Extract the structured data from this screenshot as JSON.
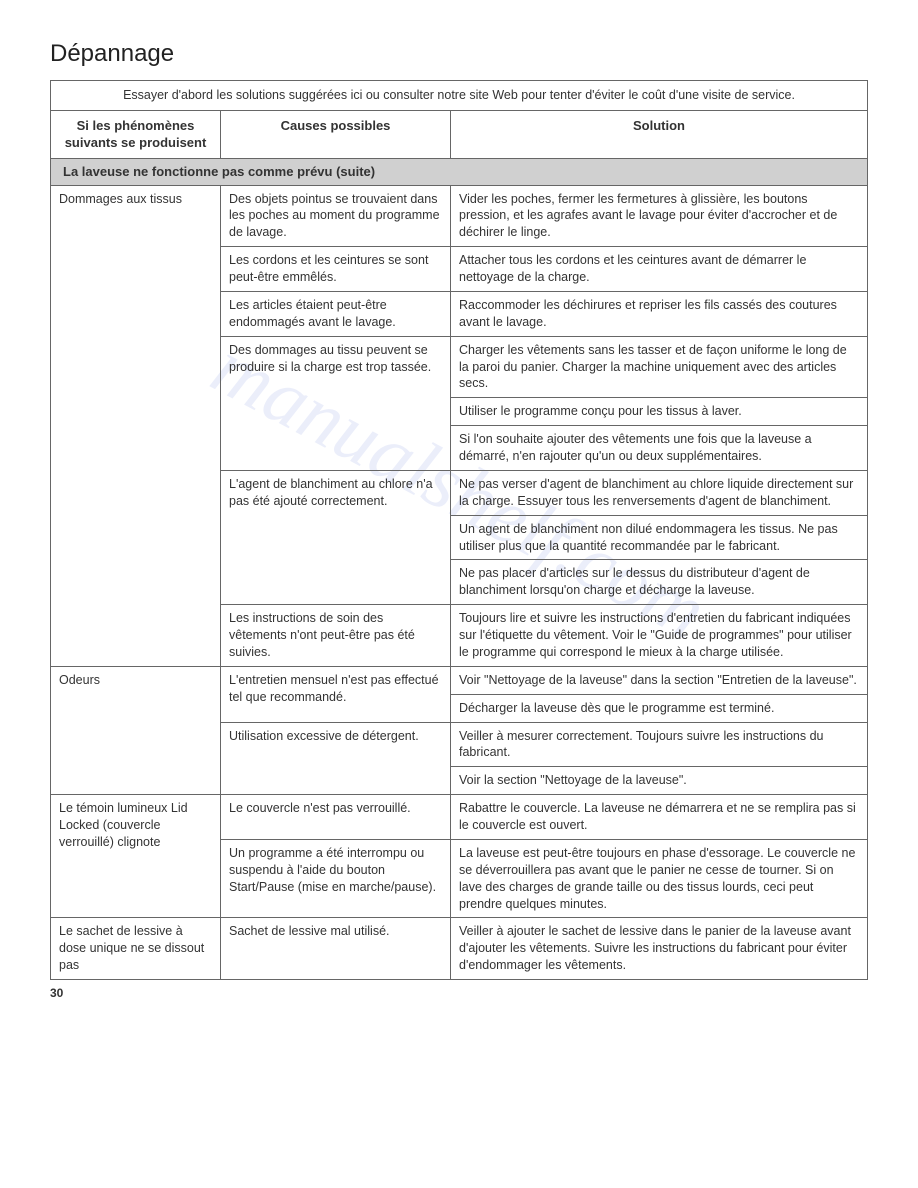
{
  "title": "Dépannage",
  "intro": "Essayer d'abord les solutions suggérées ici ou consulter notre site Web pour tenter d'éviter le coût d'une visite de service.",
  "headers": {
    "col1": "Si les phénomènes suivants se produisent",
    "col2": "Causes possibles",
    "col3": "Solution"
  },
  "section": "La laveuse ne fonctionne pas comme prévu (suite)",
  "rows": {
    "r1c1": "Dommages aux tissus",
    "r1c2": "Des objets pointus se trouvaient dans les poches au moment du programme de lavage.",
    "r1c3": "Vider les poches, fermer les fermetures à glissière, les boutons pression, et les agrafes avant le lavage pour éviter d'accrocher et de déchirer le linge.",
    "r2c2": "Les cordons et les ceintures se sont peut-être emmêlés.",
    "r2c3": "Attacher tous les cordons et les ceintures avant de démarrer le nettoyage de la charge.",
    "r3c2": "Les articles étaient peut-être endommagés avant le lavage.",
    "r3c3": "Raccommoder les déchirures et repriser les fils cassés des coutures avant le lavage.",
    "r4c2": "Des dommages au tissu peuvent se produire si la charge est trop tassée.",
    "r4c3": "Charger les vêtements sans les tasser et de façon uniforme le long de la paroi du panier. Charger la machine uniquement avec des articles secs.",
    "r5c3": "Utiliser le programme conçu pour les tissus à laver.",
    "r6c3": "Si l'on souhaite ajouter des vêtements une fois que la laveuse a démarré, n'en rajouter qu'un ou deux supplémentaires.",
    "r7c2": "L'agent de blanchiment au chlore n'a pas été ajouté correctement.",
    "r7c3": "Ne pas verser d'agent de blanchiment au chlore liquide directement sur la charge. Essuyer tous les renversements d'agent de blanchiment.",
    "r8c3": "Un agent de blanchiment non dilué endommagera les tissus. Ne pas utiliser plus que la quantité recommandée par le fabricant.",
    "r9c3": "Ne pas placer d'articles sur le dessus du distributeur d'agent de blanchiment lorsqu'on charge et décharge la laveuse.",
    "r10c2": "Les instructions de soin des vêtements n'ont peut-être pas été suivies.",
    "r10c3": "Toujours lire et suivre les instructions d'entretien du fabricant indiquées sur l'étiquette du vêtement. Voir le \"Guide de programmes\" pour utiliser le programme qui correspond le mieux à la charge utilisée.",
    "r11c1": "Odeurs",
    "r11c2": "L'entretien mensuel n'est pas effectué tel que recommandé.",
    "r11c3": "Voir \"Nettoyage de la laveuse\" dans la section \"Entretien de la laveuse\".",
    "r12c3": "Décharger la laveuse dès que le programme est terminé.",
    "r13c2": "Utilisation excessive de détergent.",
    "r13c3": "Veiller à mesurer correctement. Toujours suivre les instructions du fabricant.",
    "r14c3": "Voir la section \"Nettoyage de la laveuse\".",
    "r15c1": "Le témoin lumineux Lid Locked (couvercle verrouillé) clignote",
    "r15c2": "Le couvercle n'est pas verrouillé.",
    "r15c3": "Rabattre le couvercle. La laveuse ne démarrera et ne se remplira pas si le couvercle est ouvert.",
    "r16c2": "Un programme a été interrompu ou suspendu à l'aide du bouton Start/Pause (mise en marche/pause).",
    "r16c3": "La laveuse est peut-être toujours en phase d'essorage. Le couvercle ne se déverrouillera pas avant que le panier ne cesse de tourner. Si on lave des charges de grande taille ou des tissus lourds, ceci peut prendre quelques minutes.",
    "r17c1": "Le sachet de lessive à dose unique ne se dissout pas",
    "r17c2": "Sachet de lessive mal utilisé.",
    "r17c3": "Veiller à ajouter le sachet de lessive dans le panier de la laveuse avant d'ajouter les vêtements. Suivre les instructions du fabricant pour éviter d'endommager les vêtements."
  },
  "watermark": "manualshelf.com",
  "page_number": "30"
}
